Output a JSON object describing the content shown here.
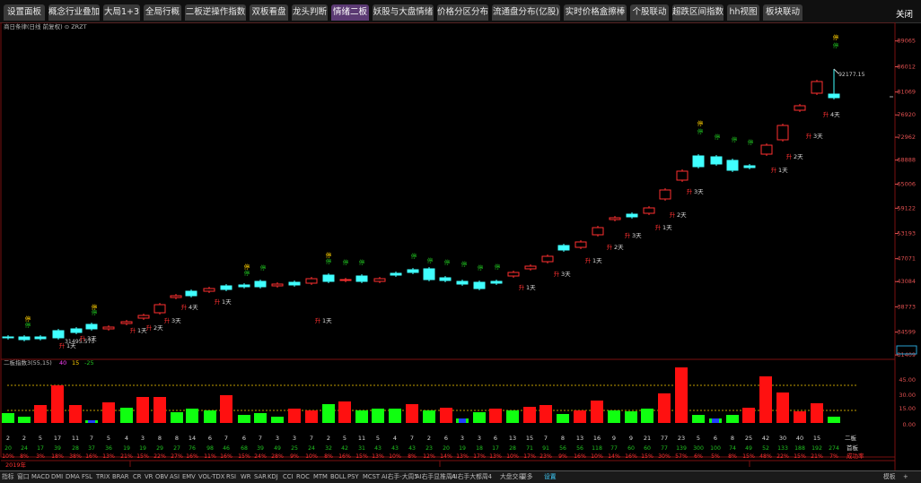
{
  "tabs": [
    "设置面板",
    "概念行业叠加",
    "大局1+3",
    "全局行概",
    "二板逆操作指数",
    "双板看盘",
    "龙头判断",
    "情绪二板",
    "妖股与大盘情绪",
    "价格分区分布",
    "流通盘分布(亿股)",
    "实时价格盒擦棒",
    "个股联动",
    "超跌区间指数",
    "hh视图",
    "板块联动"
  ],
  "active_tab": "情绪二板",
  "close_label": "关闭",
  "main_header": "商日条律(日线 前复权) ⊙ ZRZT",
  "price_axis": [
    "89065",
    "86012",
    "81069",
    "76920",
    "72962",
    "68888",
    "65006",
    "59122",
    "53193",
    "47071",
    "43084",
    "38773",
    "34599",
    "31409"
  ],
  "price_high_label": "92177.15",
  "price_low_label": "31495.573",
  "indicator_header": "二板指数3(55,15)",
  "indicator_vals": [
    "40",
    "15",
    "-25"
  ],
  "indicator_axis": [
    "45.00",
    "30.00",
    "15.00",
    "0.00"
  ],
  "row1": [
    "2",
    "2",
    "5",
    "17",
    "11",
    "7",
    "5",
    "4",
    "3",
    "8",
    "8",
    "14",
    "6",
    "7",
    "6",
    "7",
    "3",
    "3",
    "7",
    "2",
    "5",
    "11",
    "5",
    "4",
    "7",
    "2",
    "6",
    "3",
    "3",
    "6",
    "13",
    "15",
    "7",
    "8",
    "13",
    "16",
    "9",
    "9",
    "21",
    "77",
    "23",
    "5",
    "6",
    "8",
    "25",
    "42",
    "30",
    "40",
    "15"
  ],
  "row1_label": "二板",
  "row2": [
    "20",
    "24",
    "17",
    "39",
    "28",
    "37",
    "36",
    "19",
    "19",
    "29",
    "27",
    "76",
    "98",
    "46",
    "68",
    "39",
    "49",
    "25",
    "24",
    "32",
    "42",
    "31",
    "43",
    "43",
    "43",
    "23",
    "20",
    "19",
    "18",
    "17",
    "28",
    "71",
    "91",
    "56",
    "56",
    "118",
    "77",
    "60",
    "60",
    "77",
    "139",
    "300",
    "100",
    "74",
    "49",
    "52",
    "133",
    "188",
    "192"
  ],
  "row2_label": "首板",
  "row2_end": "274",
  "row3": [
    "10%",
    "8%",
    "3%",
    "18%",
    "38%",
    "16%",
    "13%",
    "21%",
    "15%",
    "22%",
    "27%",
    "16%",
    "11%",
    "16%",
    "15%",
    "24%",
    "28%",
    "9%",
    "10%",
    "8%",
    "16%",
    "15%",
    "13%",
    "10%",
    "8%",
    "12%",
    "14%",
    "13%",
    "17%",
    "13%",
    "10%",
    "17%",
    "23%",
    "9%",
    "16%",
    "10%",
    "14%",
    "16%",
    "15%",
    "30%",
    "57%",
    "6%",
    "5%",
    "8%",
    "15%",
    "48%",
    "22%",
    "15%",
    "21%"
  ],
  "row3_label": "成功率",
  "row3_end": "7%",
  "year_label": "2019年",
  "bottom_tabs": [
    "指标",
    "窗口",
    "MACD",
    "DMI",
    "DMA",
    "FSL",
    "TRIX",
    "BRAR",
    "CR",
    "VR",
    "OBV",
    "ASI",
    "EMV",
    "VOL-TDX",
    "RSI",
    "WR",
    "SAR",
    "KDJ",
    "CCI",
    "ROC",
    "MTM",
    "BOLL",
    "PSY",
    "MCST",
    "AI右手-大周5",
    "AI右手显推周4",
    "AI右手大都周4",
    "大盘交易",
    "要多",
    "设置"
  ],
  "bottom_right": [
    "模板",
    "+"
  ],
  "markers": {
    "ting": "停",
    "sheng": "升",
    "days": "天"
  },
  "colors": {
    "up": "#ff3030",
    "down": "#40ffff",
    "yellow": "#ffd000",
    "green": "#20c020",
    "magenta": "#ff40ff",
    "bar_red": "#ff1010",
    "bar_green": "#10ff10",
    "bar_blue": "#2040ff"
  }
}
